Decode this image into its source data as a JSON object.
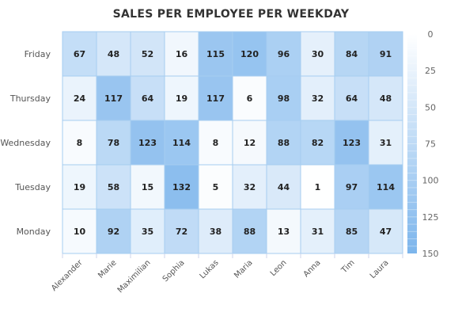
{
  "chart_data": {
    "type": "heatmap",
    "title": "SALES PER EMPLOYEE PER WEEKDAY",
    "x_categories": [
      "Alexander",
      "Marie",
      "Maximilian",
      "Sophia",
      "Lukas",
      "Maria",
      "Leon",
      "Anna",
      "Tim",
      "Laura"
    ],
    "y_categories": [
      "Friday",
      "Thursday",
      "Wednesday",
      "Tuesday",
      "Monday"
    ],
    "values": [
      [
        67,
        48,
        52,
        16,
        115,
        120,
        96,
        30,
        84,
        91
      ],
      [
        24,
        117,
        64,
        19,
        117,
        6,
        98,
        32,
        64,
        48
      ],
      [
        8,
        78,
        123,
        114,
        8,
        12,
        88,
        82,
        123,
        31
      ],
      [
        19,
        58,
        15,
        132,
        5,
        32,
        44,
        1,
        97,
        114
      ],
      [
        10,
        92,
        35,
        72,
        38,
        88,
        13,
        31,
        85,
        47
      ]
    ],
    "color_scale": {
      "min": 0,
      "max": 150,
      "min_color": "#ffffff",
      "max_color": "#7cb5ec",
      "ticks": [
        0,
        25,
        50,
        75,
        100,
        125,
        150
      ]
    },
    "border_color": "#a6cdf0",
    "legend_placement": "right"
  }
}
